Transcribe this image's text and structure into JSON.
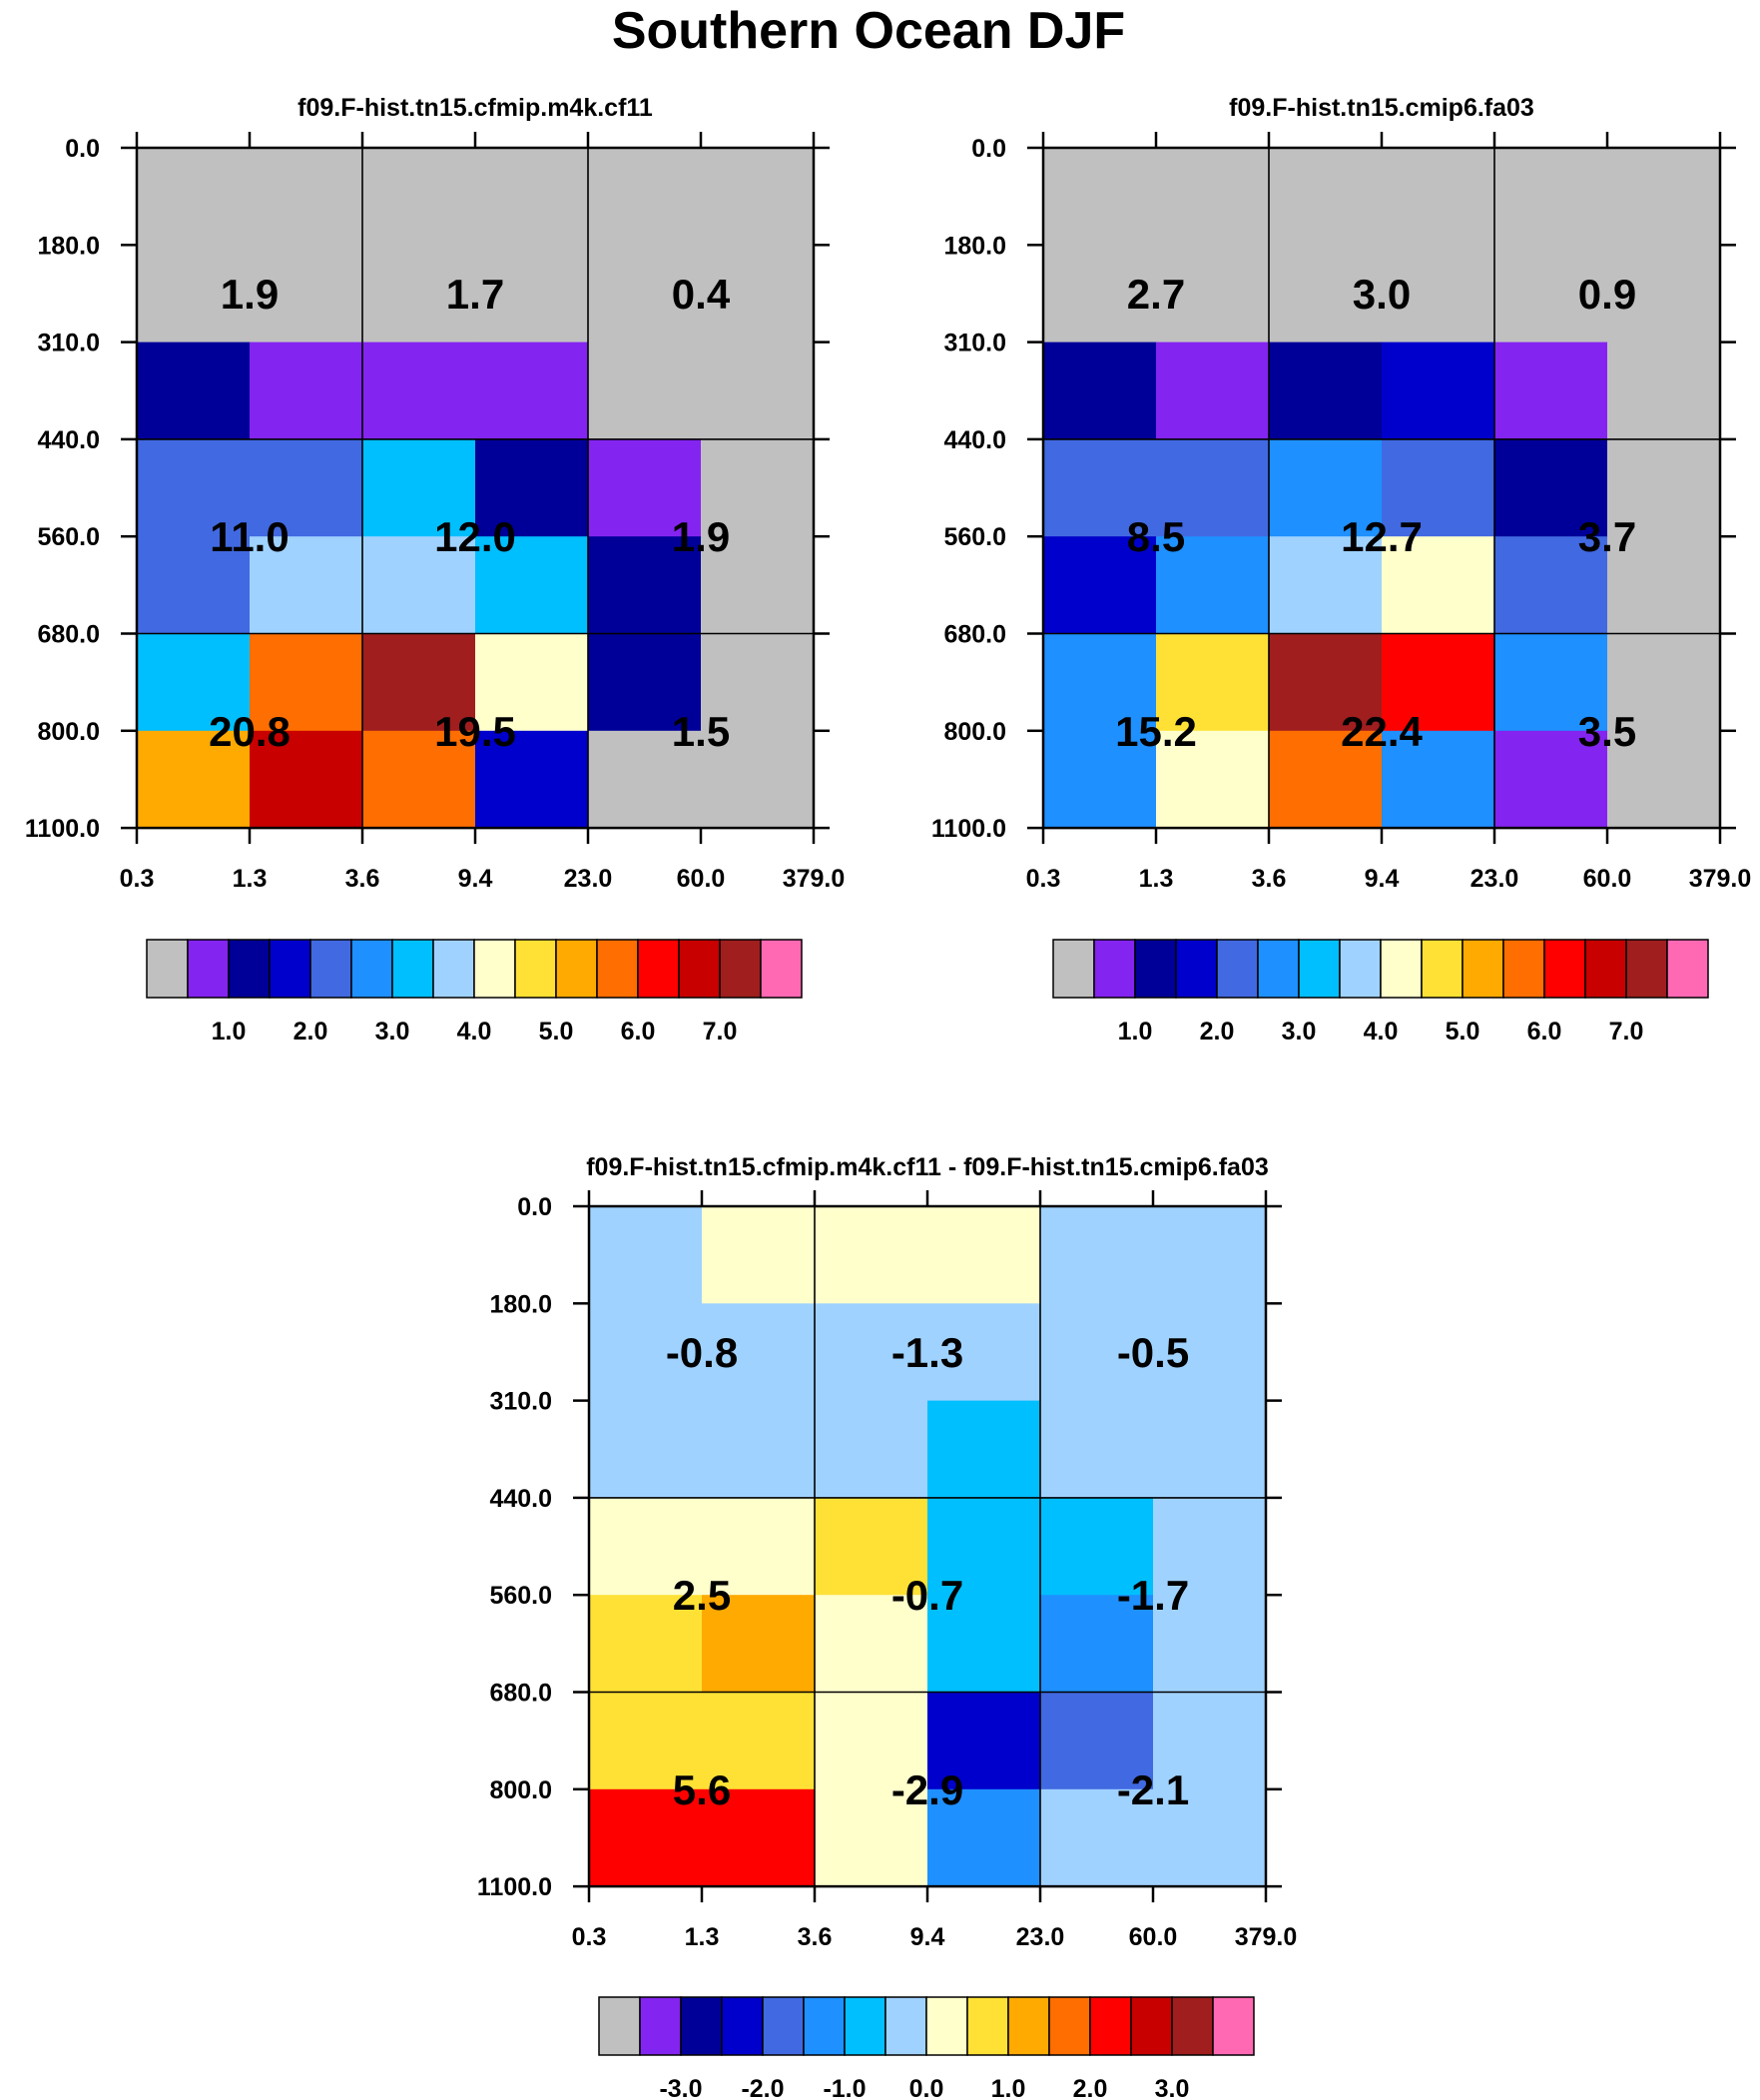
{
  "title": "Southern Ocean DJF",
  "palette": {
    "colors": [
      "#c0c0c0",
      "#8424f0",
      "#000099",
      "#0000cc",
      "#4169e1",
      "#1e90ff",
      "#00bfff",
      "#a0d2ff",
      "#ffffcc",
      "#ffe135",
      "#ffaa00",
      "#ff6e00",
      "#ff0000",
      "#c80000",
      "#a01e1e",
      "#ff69b4"
    ],
    "labels_abs": [
      "1.0",
      "2.0",
      "3.0",
      "4.0",
      "5.0",
      "6.0",
      "7.0"
    ],
    "labels_diff": [
      "-3.0",
      "-2.0",
      "-1.0",
      "0.0",
      "1.0",
      "2.0",
      "3.0"
    ]
  },
  "axes": {
    "tau_ticks": [
      "0.3",
      "1.3",
      "3.6",
      "9.4",
      "23.0",
      "60.0",
      "379.0"
    ],
    "pres_ticks": [
      "0.0",
      "180.0",
      "310.0",
      "440.0",
      "560.0",
      "680.0",
      "800.0",
      "1100.0"
    ]
  },
  "chart_data": [
    {
      "type": "heatmap",
      "title": "f09.F-hist.tn15.cfmip.m4k.cf11",
      "xlabel": "",
      "ylabel": "",
      "colorbar": "abs",
      "cells": [
        [
          0,
          0,
          0,
          0,
          0,
          0
        ],
        [
          0,
          0,
          0,
          0,
          0,
          0
        ],
        [
          2,
          1,
          1,
          1,
          0,
          0
        ],
        [
          4,
          4,
          6,
          2,
          1,
          0
        ],
        [
          4,
          7,
          7,
          6,
          2,
          0
        ],
        [
          6,
          11,
          14,
          8,
          2,
          0
        ],
        [
          10,
          13,
          11,
          3,
          0,
          0
        ]
      ],
      "box_labels": [
        [
          "1.9",
          "1.7",
          "0.4"
        ],
        [
          "11.0",
          "12.0",
          "1.9"
        ],
        [
          "20.8",
          "19.5",
          "1.5"
        ]
      ]
    },
    {
      "type": "heatmap",
      "title": "f09.F-hist.tn15.cmip6.fa03",
      "xlabel": "",
      "ylabel": "",
      "colorbar": "abs",
      "cells": [
        [
          0,
          0,
          0,
          0,
          0,
          0
        ],
        [
          0,
          0,
          0,
          0,
          0,
          0
        ],
        [
          2,
          1,
          2,
          3,
          1,
          0
        ],
        [
          4,
          4,
          5,
          4,
          2,
          0
        ],
        [
          3,
          5,
          7,
          8,
          4,
          0
        ],
        [
          5,
          9,
          14,
          12,
          5,
          0
        ],
        [
          5,
          8,
          11,
          5,
          1,
          0
        ]
      ],
      "box_labels": [
        [
          "2.7",
          "3.0",
          "0.9"
        ],
        [
          "8.5",
          "12.7",
          "3.7"
        ],
        [
          "15.2",
          "22.4",
          "3.5"
        ]
      ]
    },
    {
      "type": "heatmap",
      "title": "f09.F-hist.tn15.cfmip.m4k.cf11 - f09.F-hist.tn15.cmip6.fa03",
      "xlabel": "",
      "ylabel": "",
      "colorbar": "diff",
      "cells": [
        [
          7,
          8,
          8,
          8,
          7,
          7
        ],
        [
          7,
          7,
          7,
          7,
          7,
          7
        ],
        [
          7,
          7,
          7,
          6,
          7,
          7
        ],
        [
          8,
          8,
          9,
          6,
          6,
          7
        ],
        [
          9,
          10,
          8,
          6,
          5,
          7
        ],
        [
          9,
          9,
          8,
          3,
          4,
          7
        ],
        [
          12,
          12,
          8,
          5,
          7,
          7
        ]
      ],
      "box_labels": [
        [
          "-0.8",
          "-1.3",
          "-0.5"
        ],
        [
          "2.5",
          "-0.7",
          "-1.7"
        ],
        [
          "5.6",
          "-2.9",
          "-2.1"
        ]
      ]
    }
  ]
}
